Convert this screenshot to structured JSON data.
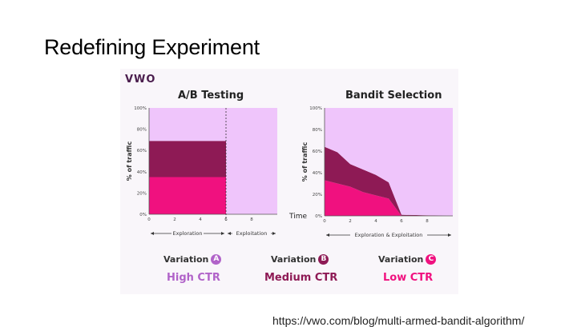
{
  "slide": {
    "title": "Redefining Experiment",
    "source_url": "https://vwo.com/blog/multi-armed-bandit-algorithm/"
  },
  "logo": {
    "text": "VWO"
  },
  "colors": {
    "variation_a": "#b163c9",
    "variation_b": "#8e1a55",
    "variation_c": "#f0117f",
    "background_area": "#efc5fb"
  },
  "chart_data": [
    {
      "type": "area",
      "title": "A/B Testing",
      "ylabel": "% of traffic",
      "x_ticks": [
        "0",
        "2",
        "4",
        "6",
        "8"
      ],
      "y_ticks": [
        "0%",
        "20%",
        "40%",
        "60%",
        "80%",
        "100%"
      ],
      "xlim": [
        0,
        10
      ],
      "ylim": [
        0,
        100
      ],
      "phase_labels": [
        "Exploration",
        "Exploitation"
      ],
      "phase_boundary_x": 6,
      "series": [
        {
          "name": "Low CTR",
          "x": [
            0,
            6
          ],
          "values": [
            35,
            35
          ]
        },
        {
          "name": "Medium CTR",
          "x": [
            0,
            6
          ],
          "values": [
            34,
            34
          ]
        },
        {
          "name": "High CTR",
          "x": [
            0,
            6,
            6,
            10
          ],
          "values": [
            31,
            31,
            100,
            100
          ]
        }
      ]
    },
    {
      "type": "area",
      "title": "Bandit Selection",
      "ylabel": "% of traffic",
      "xlabel": "Time",
      "x_ticks": [
        "0",
        "2",
        "4",
        "6",
        "8"
      ],
      "y_ticks": [
        "0%",
        "20%",
        "40%",
        "60%",
        "80%",
        "100%"
      ],
      "xlim": [
        0,
        10
      ],
      "ylim": [
        0,
        100
      ],
      "phase_labels": [
        "Exploration & Exploitation"
      ],
      "series": [
        {
          "name": "Low CTR",
          "x": [
            0,
            1,
            2,
            3,
            4,
            5,
            6,
            10
          ],
          "values": [
            33,
            30,
            27,
            22,
            19,
            16,
            0,
            0
          ]
        },
        {
          "name": "Medium CTR",
          "x": [
            0,
            1,
            2,
            3,
            4,
            5,
            6,
            10
          ],
          "values": [
            31,
            29,
            21,
            21,
            19,
            15,
            1,
            0
          ]
        },
        {
          "name": "High CTR",
          "x": [
            0,
            1,
            2,
            3,
            4,
            5,
            6,
            10
          ],
          "values": [
            36,
            41,
            52,
            57,
            62,
            69,
            99,
            100
          ]
        }
      ]
    }
  ],
  "legend": [
    {
      "label": "Variation",
      "badge": "A",
      "ctr": "High CTR",
      "color": "#b163c9"
    },
    {
      "label": "Variation",
      "badge": "B",
      "ctr": "Medium CTR",
      "color": "#8e1a55"
    },
    {
      "label": "Variation",
      "badge": "C",
      "ctr": "Low CTR",
      "color": "#f0117f"
    }
  ]
}
